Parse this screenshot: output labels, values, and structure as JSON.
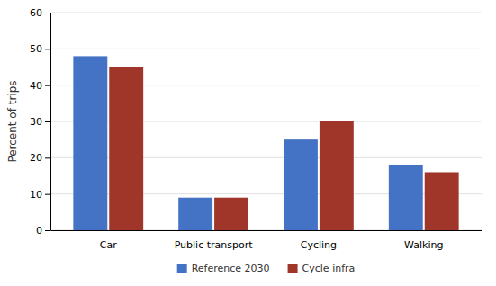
{
  "chart_data": {
    "type": "bar",
    "categories": [
      "Car",
      "Public transport",
      "Cycling",
      "Walking"
    ],
    "series": [
      {
        "name": "Reference 2030",
        "color": "#4472C4",
        "values": [
          48,
          9,
          25,
          18
        ]
      },
      {
        "name": "Cycle infra",
        "color": "#A0362A",
        "values": [
          45,
          9,
          30,
          16
        ]
      }
    ],
    "ylabel": "Percent of trips",
    "ylim": [
      0,
      60
    ],
    "yticks": [
      0,
      10,
      20,
      30,
      40,
      50,
      60
    ],
    "grid": true,
    "legend": "bottom"
  }
}
